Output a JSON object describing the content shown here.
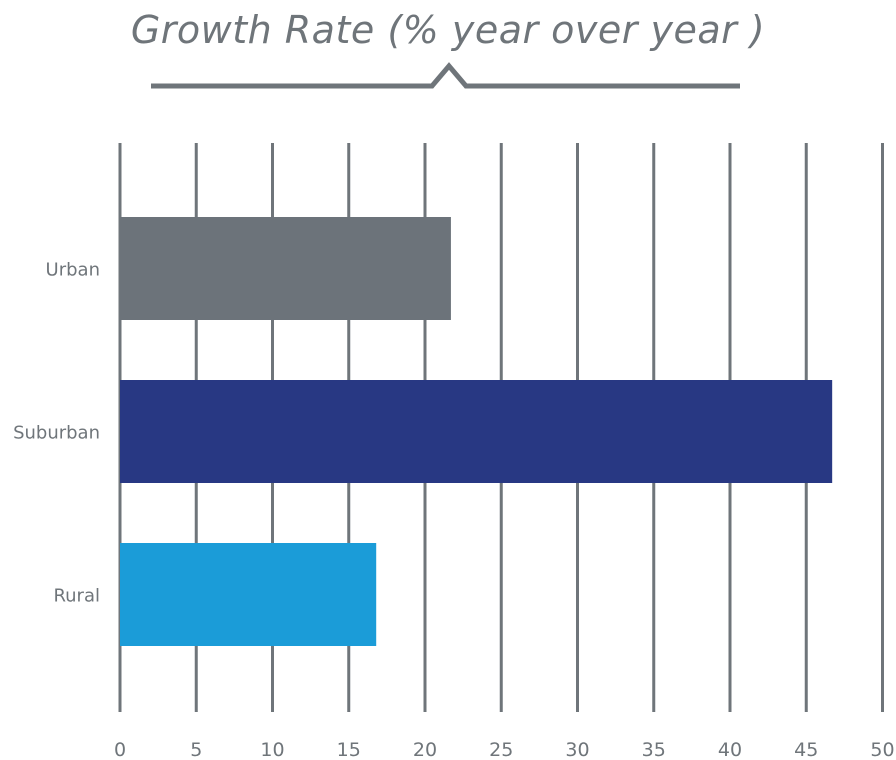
{
  "chart_data": {
    "type": "bar",
    "orientation": "horizontal",
    "title": "Growth Rate (% year over year )",
    "xlabel": "",
    "ylabel": "",
    "categories": [
      "Urban",
      "Suburban",
      "Rural"
    ],
    "values": [
      21.7,
      46.7,
      16.8
    ],
    "colors": [
      "#6c737a",
      "#283883",
      "#1b9cd8"
    ],
    "xlim": [
      0,
      50
    ],
    "xticks": [
      0,
      5,
      10,
      15,
      20,
      25,
      30,
      35,
      40,
      45,
      50
    ],
    "grid": true,
    "grid_color": "#6f757a",
    "legend": "none"
  }
}
